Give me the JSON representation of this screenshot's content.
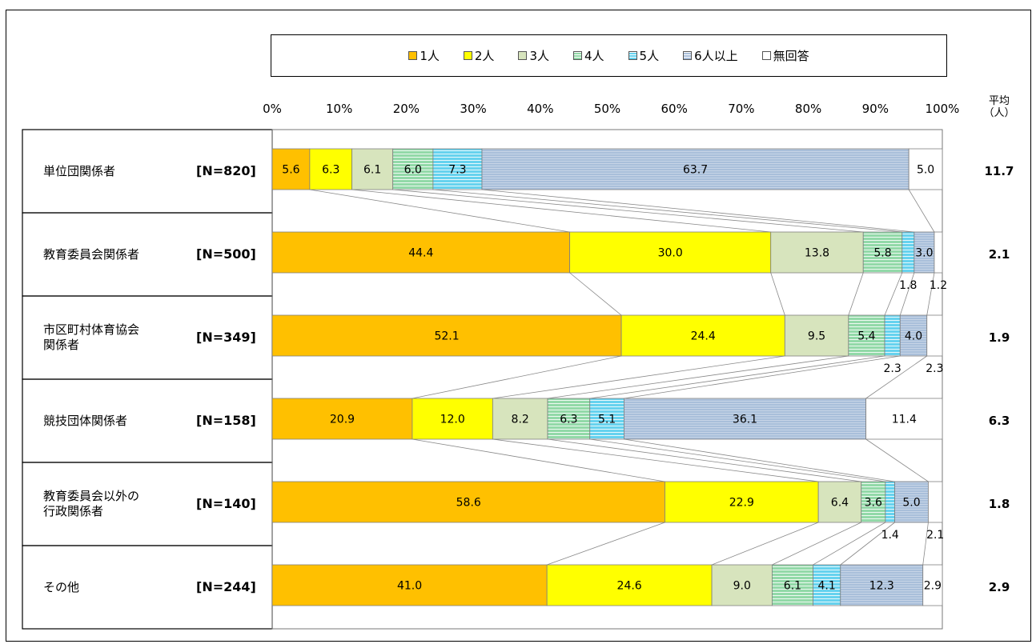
{
  "chart_data": {
    "type": "bar",
    "orientation": "horizontal",
    "stacked": "100%",
    "xlim": [
      0,
      100
    ],
    "x_ticks": [
      "0%",
      "10%",
      "20%",
      "30%",
      "40%",
      "50%",
      "60%",
      "70%",
      "80%",
      "90%",
      "100%"
    ],
    "average_header": "平均\n（人）",
    "categories": [
      {
        "label": "単位団関係者",
        "n": "[N=820]",
        "average": "11.7"
      },
      {
        "label": "教育委員会関係者",
        "n": "[N=500]",
        "average": "2.1"
      },
      {
        "label": "市区町村体育協会\n関係者",
        "n": "[N=349]",
        "average": "1.9"
      },
      {
        "label": "競技団体関係者",
        "n": "[N=158]",
        "average": "6.3"
      },
      {
        "label": "教育委員会以外の\n行政関係者",
        "n": "[N=140]",
        "average": "1.8"
      },
      {
        "label": "その他",
        "n": "[N=244]",
        "average": "2.9"
      }
    ],
    "series": [
      {
        "name": "1人",
        "color": "#FFC000",
        "pattern": "solid",
        "values": [
          5.6,
          44.4,
          52.1,
          20.9,
          58.6,
          41.0
        ]
      },
      {
        "name": "2人",
        "color": "#FFFF00",
        "pattern": "solid",
        "values": [
          6.3,
          30.0,
          24.4,
          12.0,
          22.9,
          24.6
        ]
      },
      {
        "name": "3人",
        "color": "#D7E4BD",
        "pattern": "solid",
        "values": [
          6.1,
          13.8,
          9.5,
          8.2,
          6.4,
          9.0
        ]
      },
      {
        "name": "4人",
        "color": "#92D9A8",
        "pattern": "hstripe",
        "values": [
          6.0,
          5.8,
          5.4,
          6.3,
          3.6,
          6.1
        ]
      },
      {
        "name": "5人",
        "color": "#66D2EE",
        "pattern": "hstripe",
        "values": [
          7.3,
          1.8,
          2.3,
          5.1,
          1.4,
          4.1
        ]
      },
      {
        "name": "6人以上",
        "color": "#A9BFDA",
        "pattern": "fine",
        "values": [
          63.7,
          3.0,
          4.0,
          36.1,
          5.0,
          12.3
        ]
      },
      {
        "name": "無回答",
        "color": "#FFFFFF",
        "pattern": "solid",
        "values": [
          5.0,
          1.2,
          2.3,
          11.4,
          2.1,
          2.9
        ]
      }
    ],
    "data_labels": [
      [
        "5.6",
        "6.3",
        "6.1",
        "6.0",
        "7.3",
        "63.7",
        "5.0"
      ],
      [
        "44.4",
        "30.0",
        "13.8",
        "5.8",
        "1.8",
        "3.0",
        "1.2"
      ],
      [
        "52.1",
        "24.4",
        "9.5",
        "5.4",
        "2.3",
        "4.0",
        "2.3"
      ],
      [
        "20.9",
        "12.0",
        "8.2",
        "6.3",
        "5.1",
        "36.1",
        "11.4"
      ],
      [
        "58.6",
        "22.9",
        "6.4",
        "3.6",
        "1.4",
        "5.0",
        "2.1"
      ],
      [
        "41.0",
        "24.6",
        "9.0",
        "6.1",
        "4.1",
        "12.3",
        "2.9"
      ]
    ],
    "legend_position": "top",
    "grid": false,
    "connector_lines": true
  }
}
